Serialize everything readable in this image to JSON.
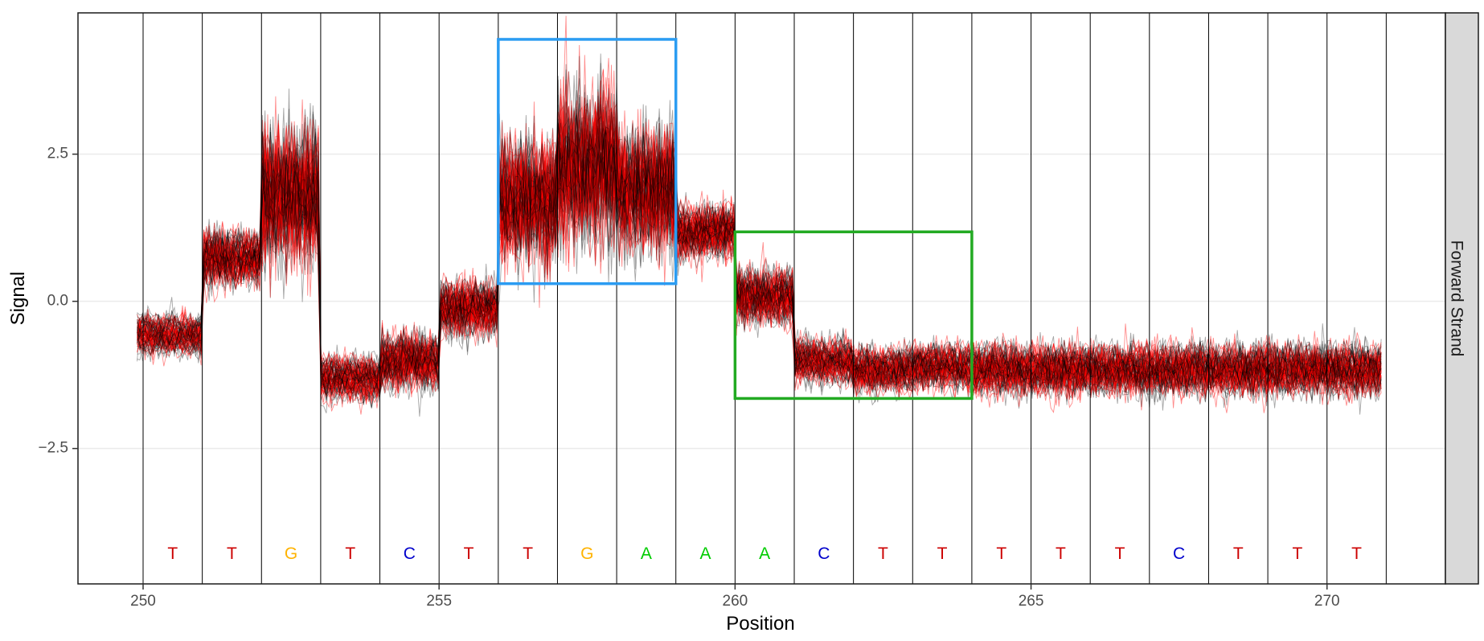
{
  "chart_data": {
    "type": "line",
    "title": "",
    "xlabel": "Position",
    "ylabel": "Signal",
    "facet_label": "Forward Strand",
    "xlim": [
      248.9,
      272.0
    ],
    "ylim": [
      -4.8,
      4.9
    ],
    "x_ticks": [
      250,
      255,
      260,
      265,
      270
    ],
    "x_tick_labels": [
      "250",
      "255",
      "260",
      "265",
      "270"
    ],
    "y_ticks": [
      2.5,
      0.0,
      -2.5
    ],
    "y_tick_labels": [
      "2.5",
      "0.0",
      "-2.5"
    ],
    "grid": true,
    "base_boundaries": [
      250,
      251,
      252,
      253,
      254,
      255,
      256,
      257,
      258,
      259,
      260,
      261,
      262,
      263,
      264,
      265,
      266,
      267,
      268,
      269,
      270,
      271
    ],
    "bases": [
      {
        "pos": 250.5,
        "base": "T"
      },
      {
        "pos": 251.5,
        "base": "T"
      },
      {
        "pos": 252.5,
        "base": "G"
      },
      {
        "pos": 253.5,
        "base": "T"
      },
      {
        "pos": 254.5,
        "base": "C"
      },
      {
        "pos": 255.5,
        "base": "T"
      },
      {
        "pos": 256.5,
        "base": "T"
      },
      {
        "pos": 257.5,
        "base": "G"
      },
      {
        "pos": 258.5,
        "base": "A"
      },
      {
        "pos": 259.5,
        "base": "A"
      },
      {
        "pos": 260.5,
        "base": "A"
      },
      {
        "pos": 261.5,
        "base": "C"
      },
      {
        "pos": 262.5,
        "base": "T"
      },
      {
        "pos": 263.5,
        "base": "T"
      },
      {
        "pos": 264.5,
        "base": "T"
      },
      {
        "pos": 265.5,
        "base": "T"
      },
      {
        "pos": 266.5,
        "base": "T"
      },
      {
        "pos": 267.5,
        "base": "C"
      },
      {
        "pos": 268.5,
        "base": "T"
      },
      {
        "pos": 269.5,
        "base": "T"
      },
      {
        "pos": 270.5,
        "base": "T"
      }
    ],
    "base_y": -4.3,
    "base_colors": {
      "A": "#00cc00",
      "C": "#0000cc",
      "G": "#ffb300",
      "T": "#cc0000"
    },
    "series": [
      {
        "color": "#ff0000",
        "reads": 40
      },
      {
        "color": "#000000",
        "reads": 30
      }
    ],
    "segment_means": [
      {
        "start": 249.9,
        "end": 251.0,
        "mean": -0.55,
        "spread": 0.2
      },
      {
        "start": 251.0,
        "end": 252.0,
        "mean": 0.75,
        "spread": 0.35
      },
      {
        "start": 252.0,
        "end": 253.0,
        "mean": 1.8,
        "spread": 1.0
      },
      {
        "start": 253.0,
        "end": 254.0,
        "mean": -1.3,
        "spread": 0.25
      },
      {
        "start": 254.0,
        "end": 255.0,
        "mean": -1.0,
        "spread": 0.35
      },
      {
        "start": 255.0,
        "end": 256.0,
        "mean": -0.1,
        "spread": 0.35
      },
      {
        "start": 256.0,
        "end": 257.0,
        "mean": 1.7,
        "spread": 0.9
      },
      {
        "start": 257.0,
        "end": 258.0,
        "mean": 2.3,
        "spread": 1.1
      },
      {
        "start": 258.0,
        "end": 259.0,
        "mean": 1.9,
        "spread": 0.9
      },
      {
        "start": 259.0,
        "end": 260.0,
        "mean": 1.2,
        "spread": 0.35
      },
      {
        "start": 260.0,
        "end": 261.0,
        "mean": 0.1,
        "spread": 0.35
      },
      {
        "start": 261.0,
        "end": 262.0,
        "mean": -1.0,
        "spread": 0.25
      },
      {
        "start": 262.0,
        "end": 263.0,
        "mean": -1.15,
        "spread": 0.25
      },
      {
        "start": 263.0,
        "end": 264.0,
        "mean": -1.1,
        "spread": 0.25
      },
      {
        "start": 264.0,
        "end": 270.95,
        "mean": -1.15,
        "spread": 0.3
      }
    ],
    "highlight_boxes": [
      {
        "x": [
          256.0,
          259.0
        ],
        "y": [
          0.3,
          4.45
        ],
        "color": "#2b9cf2"
      },
      {
        "x": [
          260.0,
          264.0
        ],
        "y": [
          -1.65,
          1.18
        ],
        "color": "#22aa22"
      }
    ]
  }
}
